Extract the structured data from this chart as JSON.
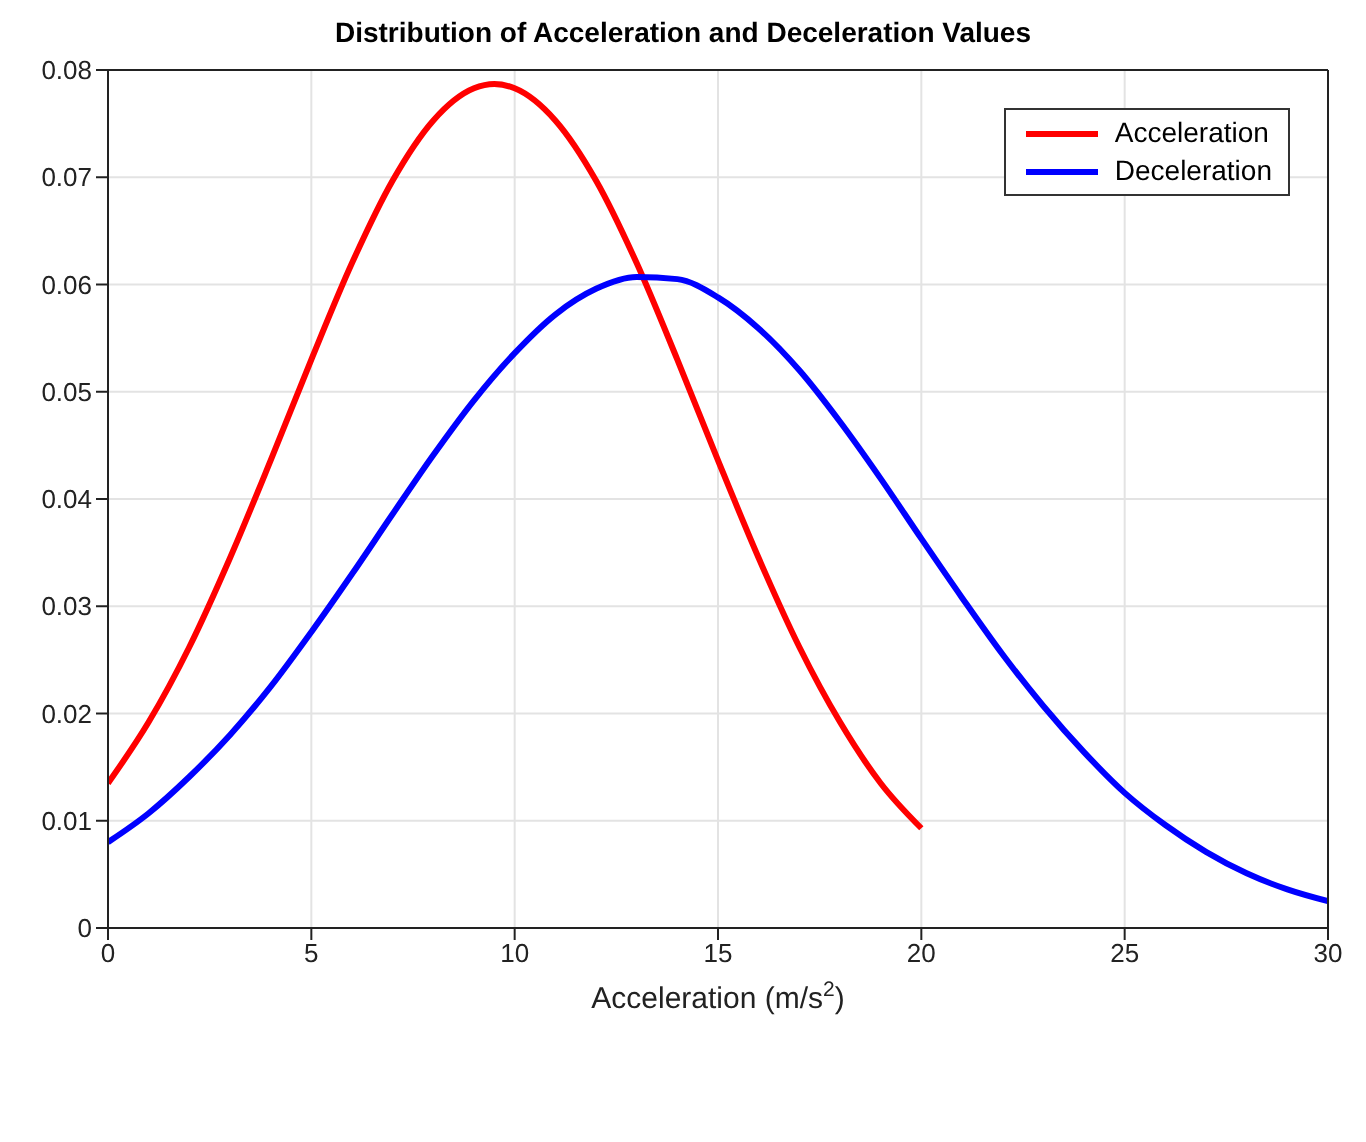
{
  "chart_data": {
    "type": "line",
    "title": "Distribution of Acceleration and Deceleration Values",
    "xlabel": "Acceleration (m/s$^{2}$)",
    "xlim": [
      0,
      30
    ],
    "xticks": [
      0,
      5,
      10,
      15,
      20,
      25,
      30
    ],
    "ylim": [
      0,
      0.08
    ],
    "yticks": [
      0,
      0.01,
      0.02,
      0.03,
      0.04,
      0.05,
      0.06,
      0.07,
      0.08
    ],
    "grid": true,
    "legend": "top right",
    "marker": "none",
    "line_style": "solid",
    "series": [
      {
        "name": "Acceleration",
        "color": "#ff0000",
        "x": [
          0,
          1,
          2,
          3,
          4,
          5,
          6,
          7,
          8,
          9,
          9.5,
          10,
          11,
          12,
          13,
          14,
          15,
          16,
          17,
          18,
          19,
          20
        ],
        "values": [
          0.0135,
          0.0192,
          0.0262,
          0.0345,
          0.0436,
          0.053,
          0.062,
          0.0697,
          0.0753,
          0.0783,
          0.0787,
          0.0783,
          0.0753,
          0.0697,
          0.062,
          0.053,
          0.0436,
          0.0345,
          0.0262,
          0.0192,
          0.0135,
          0.0093
        ]
      },
      {
        "name": "Deceleration",
        "color": "#0000ff",
        "x": [
          0,
          1,
          2,
          3,
          4,
          5,
          6,
          7,
          8,
          9,
          10,
          11,
          12,
          13,
          14,
          15,
          16,
          17,
          18,
          19,
          20,
          21,
          22,
          23,
          24,
          25,
          26,
          27,
          28,
          29,
          30
        ],
        "values": [
          0.008,
          0.0107,
          0.0141,
          0.018,
          0.0225,
          0.0276,
          0.033,
          0.0386,
          0.0441,
          0.0492,
          0.0536,
          0.0572,
          0.0596,
          0.0607,
          0.0605,
          0.0588,
          0.0559,
          0.052,
          0.0472,
          0.0419,
          0.0363,
          0.0308,
          0.0255,
          0.0207,
          0.0164,
          0.0126,
          0.0096,
          0.0071,
          0.0051,
          0.0036,
          0.0025
        ]
      }
    ]
  }
}
